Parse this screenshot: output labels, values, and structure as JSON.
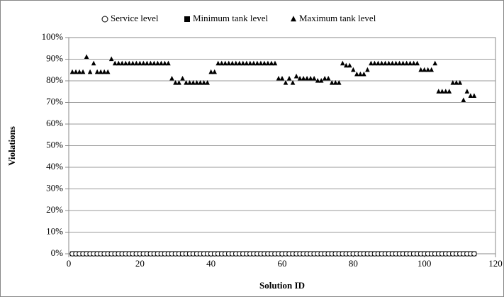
{
  "chart_data": {
    "type": "scatter",
    "xlabel": "Solution ID",
    "ylabel": "Violations",
    "xlim": [
      0,
      120
    ],
    "xticks": [
      0,
      20,
      40,
      60,
      80,
      100,
      120
    ],
    "ylim": [
      0,
      100
    ],
    "yticks": [
      {
        "value": 0,
        "label": "0%"
      },
      {
        "value": 10,
        "label": "10%"
      },
      {
        "value": 20,
        "label": "20%"
      },
      {
        "value": 30,
        "label": "30%"
      },
      {
        "value": 40,
        "label": "40%"
      },
      {
        "value": 50,
        "label": "50%"
      },
      {
        "value": 60,
        "label": "60%"
      },
      {
        "value": 70,
        "label": "70%"
      },
      {
        "value": 80,
        "label": "80%"
      },
      {
        "value": 90,
        "label": "90%"
      },
      {
        "value": 100,
        "label": "100%"
      }
    ],
    "grid": true,
    "legend": "top",
    "x": [
      1,
      2,
      3,
      4,
      5,
      6,
      7,
      8,
      9,
      10,
      11,
      12,
      13,
      14,
      15,
      16,
      17,
      18,
      19,
      20,
      21,
      22,
      23,
      24,
      25,
      26,
      27,
      28,
      29,
      30,
      31,
      32,
      33,
      34,
      35,
      36,
      37,
      38,
      39,
      40,
      41,
      42,
      43,
      44,
      45,
      46,
      47,
      48,
      49,
      50,
      51,
      52,
      53,
      54,
      55,
      56,
      57,
      58,
      59,
      60,
      61,
      62,
      63,
      64,
      65,
      66,
      67,
      68,
      69,
      70,
      71,
      72,
      73,
      74,
      75,
      76,
      77,
      78,
      79,
      80,
      81,
      82,
      83,
      84,
      85,
      86,
      87,
      88,
      89,
      90,
      91,
      92,
      93,
      94,
      95,
      96,
      97,
      98,
      99,
      100,
      101,
      102,
      103,
      104,
      105,
      106,
      107,
      108,
      109,
      110,
      111,
      112,
      113,
      114
    ],
    "series": [
      {
        "name": "Minimum tank level",
        "marker": "square",
        "color": "#000000",
        "values": [
          0,
          0,
          0,
          0,
          0,
          0,
          0,
          0,
          0,
          0,
          0,
          0,
          0,
          0,
          0,
          0,
          0,
          0,
          0,
          0,
          0,
          0,
          0,
          0,
          0,
          0,
          0,
          0,
          0,
          0,
          0,
          0,
          0,
          0,
          0,
          0,
          0,
          0,
          0,
          0,
          0,
          0,
          0,
          0,
          0,
          0,
          0,
          0,
          0,
          0,
          0,
          0,
          0,
          0,
          0,
          0,
          0,
          0,
          0,
          0,
          0,
          0,
          0,
          0,
          0,
          0,
          0,
          0,
          0,
          0,
          0,
          0,
          0,
          0,
          0,
          0,
          0,
          0,
          0,
          0,
          0,
          0,
          0,
          0,
          0,
          0,
          0,
          0,
          0,
          0,
          0,
          0,
          0,
          0,
          0,
          0,
          0,
          0,
          0,
          0,
          0,
          0,
          0,
          0,
          0,
          0,
          0,
          0,
          0,
          0,
          0,
          0,
          0,
          0
        ]
      },
      {
        "name": "Service level",
        "marker": "circle",
        "color": "#000000",
        "values": [
          0,
          0,
          0,
          0,
          0,
          0,
          0,
          0,
          0,
          0,
          0,
          0,
          0,
          0,
          0,
          0,
          0,
          0,
          0,
          0,
          0,
          0,
          0,
          0,
          0,
          0,
          0,
          0,
          0,
          0,
          0,
          0,
          0,
          0,
          0,
          0,
          0,
          0,
          0,
          0,
          0,
          0,
          0,
          0,
          0,
          0,
          0,
          0,
          0,
          0,
          0,
          0,
          0,
          0,
          0,
          0,
          0,
          0,
          0,
          0,
          0,
          0,
          0,
          0,
          0,
          0,
          0,
          0,
          0,
          0,
          0,
          0,
          0,
          0,
          0,
          0,
          0,
          0,
          0,
          0,
          0,
          0,
          0,
          0,
          0,
          0,
          0,
          0,
          0,
          0,
          0,
          0,
          0,
          0,
          0,
          0,
          0,
          0,
          0,
          0,
          0,
          0,
          0,
          0,
          0,
          0,
          0,
          0,
          0,
          0,
          0,
          0,
          0,
          0
        ]
      },
      {
        "name": "Maximum tank level",
        "marker": "triangle",
        "color": "#000000",
        "values": [
          84,
          84,
          84,
          84,
          91,
          84,
          88,
          84,
          84,
          84,
          84,
          90,
          88,
          88,
          88,
          88,
          88,
          88,
          88,
          88,
          88,
          88,
          88,
          88,
          88,
          88,
          88,
          88,
          81,
          79,
          79,
          81,
          79,
          79,
          79,
          79,
          79,
          79,
          79,
          84,
          84,
          88,
          88,
          88,
          88,
          88,
          88,
          88,
          88,
          88,
          88,
          88,
          88,
          88,
          88,
          88,
          88,
          88,
          81,
          81,
          79,
          81,
          79,
          82,
          81,
          81,
          81,
          81,
          81,
          80,
          80,
          81,
          81,
          79,
          79,
          79,
          88,
          87,
          87,
          85,
          83,
          83,
          83,
          85,
          88,
          88,
          88,
          88,
          88,
          88,
          88,
          88,
          88,
          88,
          88,
          88,
          88,
          88,
          85,
          85,
          85,
          85,
          88,
          75,
          75,
          75,
          75,
          79,
          79,
          79,
          71,
          75,
          73,
          73
        ]
      }
    ]
  }
}
